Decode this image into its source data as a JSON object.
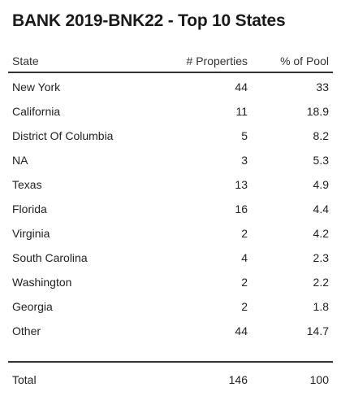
{
  "title": "BANK 2019-BNK22 - Top 10 States",
  "columns": {
    "state": "State",
    "properties": "# Properties",
    "pool": "% of Pool"
  },
  "rows": [
    {
      "state": "New York",
      "properties": "44",
      "pool": "33"
    },
    {
      "state": "California",
      "properties": "11",
      "pool": "18.9"
    },
    {
      "state": "District Of Columbia",
      "properties": "5",
      "pool": "8.2"
    },
    {
      "state": "NA",
      "properties": "3",
      "pool": "5.3"
    },
    {
      "state": "Texas",
      "properties": "13",
      "pool": "4.9"
    },
    {
      "state": "Florida",
      "properties": "16",
      "pool": "4.4"
    },
    {
      "state": "Virginia",
      "properties": "2",
      "pool": "4.2"
    },
    {
      "state": "South Carolina",
      "properties": "4",
      "pool": "2.3"
    },
    {
      "state": "Washington",
      "properties": "2",
      "pool": "2.2"
    },
    {
      "state": "Georgia",
      "properties": "2",
      "pool": "1.8"
    },
    {
      "state": "Other",
      "properties": "44",
      "pool": "14.7"
    }
  ],
  "total": {
    "label": "Total",
    "properties": "146",
    "pool": "100"
  },
  "chart_data": {
    "type": "table",
    "title": "BANK 2019-BNK22 - Top 10 States",
    "columns": [
      "State",
      "# Properties",
      "% of Pool"
    ],
    "rows": [
      [
        "New York",
        44,
        33
      ],
      [
        "California",
        11,
        18.9
      ],
      [
        "District Of Columbia",
        5,
        8.2
      ],
      [
        "NA",
        3,
        5.3
      ],
      [
        "Texas",
        13,
        4.9
      ],
      [
        "Florida",
        16,
        4.4
      ],
      [
        "Virginia",
        2,
        4.2
      ],
      [
        "South Carolina",
        4,
        2.3
      ],
      [
        "Washington",
        2,
        2.2
      ],
      [
        "Georgia",
        2,
        1.8
      ],
      [
        "Other",
        44,
        14.7
      ]
    ],
    "total": [
      "Total",
      146,
      100
    ]
  }
}
